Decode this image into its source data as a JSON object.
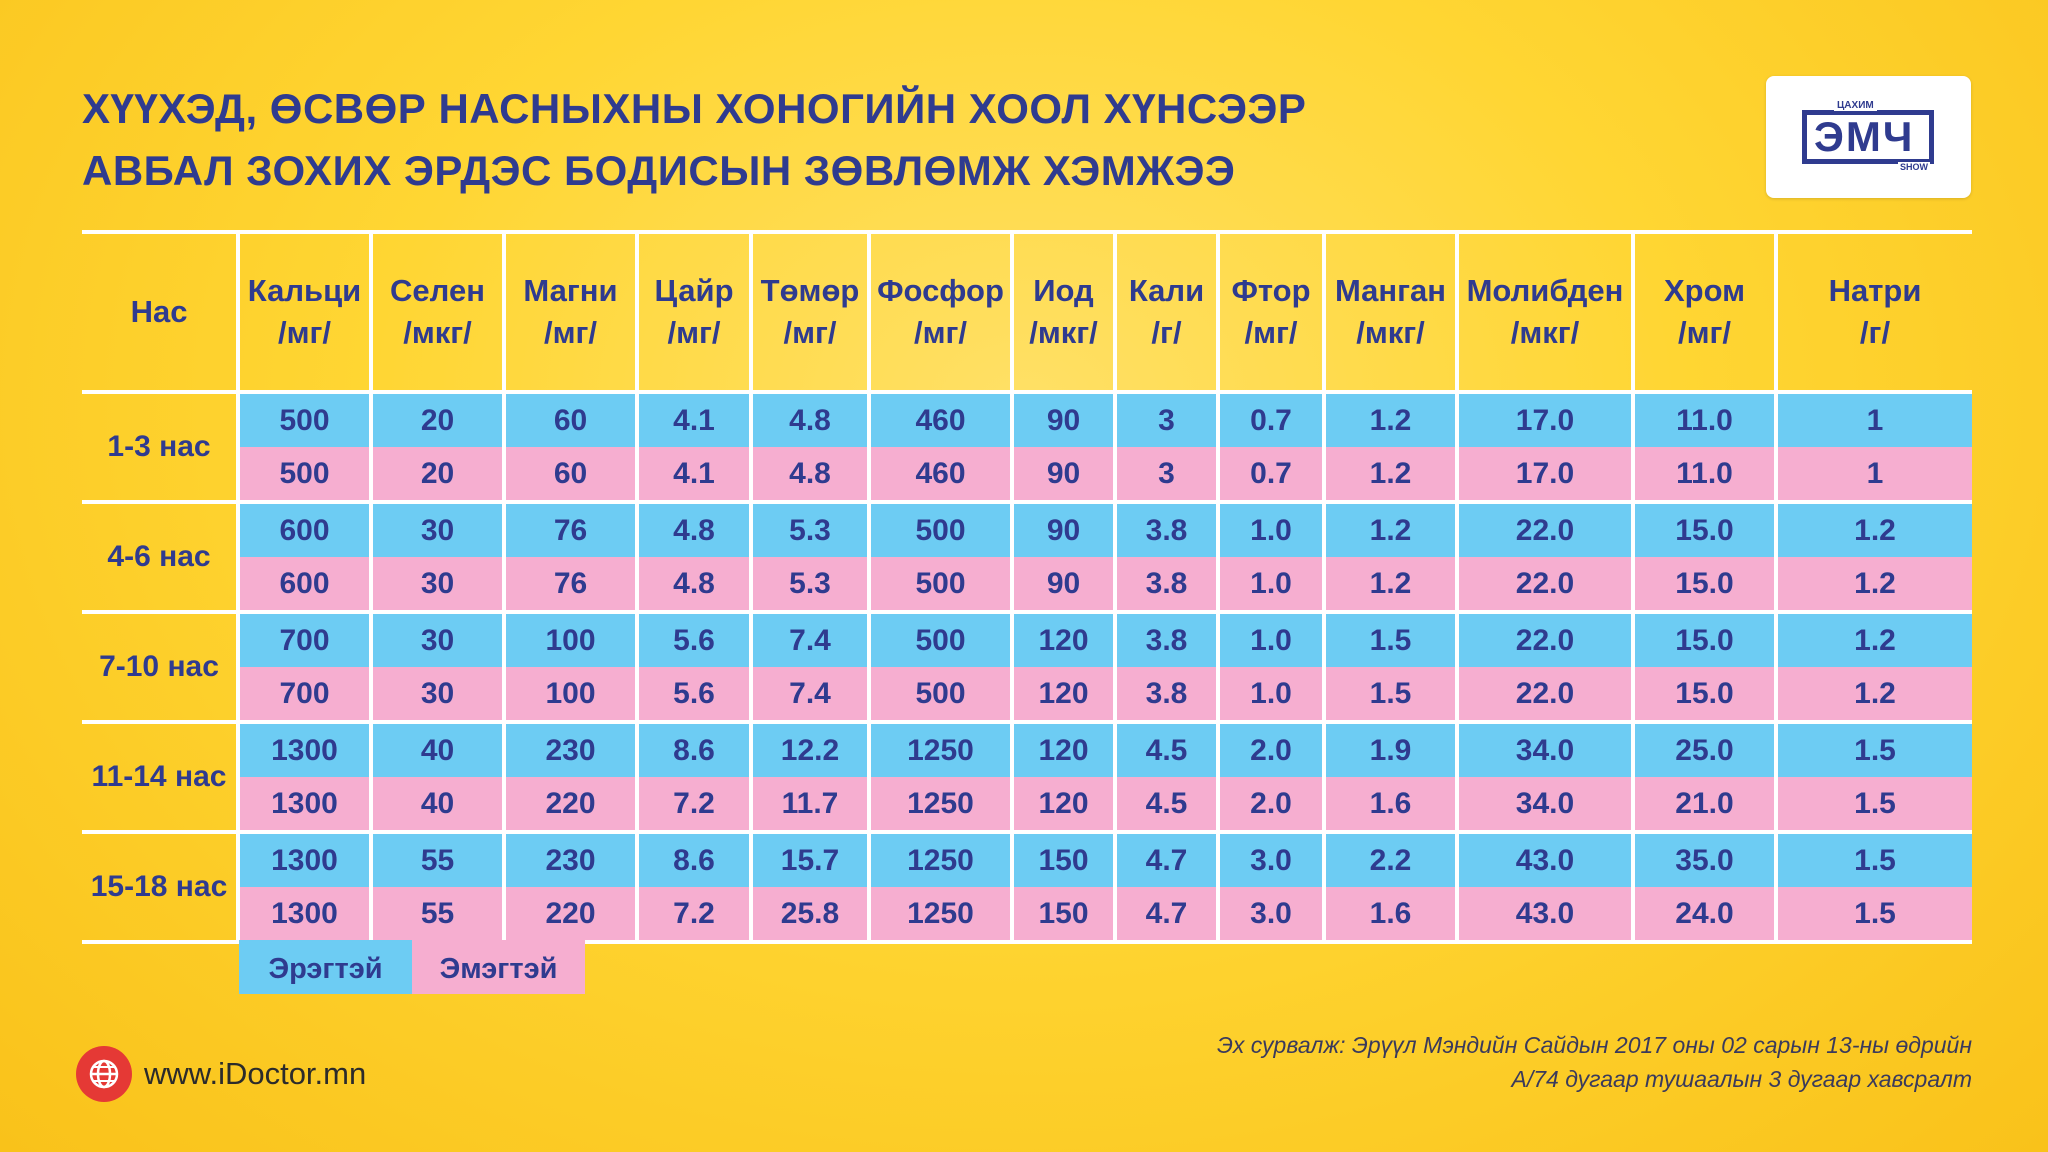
{
  "title": {
    "line1": "ХҮҮХЭД, ӨСВӨР НАСНЫХНЫ ХОНОГИЙН ХООЛ ХҮНСЭЭР",
    "line2": "АВБАЛ ЗОХИХ ЭРДЭС БОДИСЫН ЗӨВЛӨМЖ ХЭМЖЭЭ"
  },
  "logo": {
    "top": "ЦАХИМ",
    "main": "ЭМЧ",
    "bottom": "SHOW"
  },
  "table": {
    "age_header": "Нас",
    "columns": [
      {
        "name": "Кальци",
        "unit": "/мг/"
      },
      {
        "name": "Селен",
        "unit": "/мкг/"
      },
      {
        "name": "Магни",
        "unit": "/мг/"
      },
      {
        "name": "Цайр",
        "unit": "/мг/"
      },
      {
        "name": "Төмөр",
        "unit": "/мг/"
      },
      {
        "name": "Фосфор",
        "unit": "/мг/"
      },
      {
        "name": "Иод",
        "unit": "/мкг/"
      },
      {
        "name": "Кали",
        "unit": "/г/"
      },
      {
        "name": "Фтор",
        "unit": "/мг/"
      },
      {
        "name": "Манган",
        "unit": "/мкг/"
      },
      {
        "name": "Молибден",
        "unit": "/мкг/"
      },
      {
        "name": "Хром",
        "unit": "/мг/"
      },
      {
        "name": "Натри",
        "unit": "/г/"
      }
    ],
    "groups": [
      {
        "age": "1-3 нас",
        "male": [
          "500",
          "20",
          "60",
          "4.1",
          "4.8",
          "460",
          "90",
          "3",
          "0.7",
          "1.2",
          "17.0",
          "11.0",
          "1"
        ],
        "female": [
          "500",
          "20",
          "60",
          "4.1",
          "4.8",
          "460",
          "90",
          "3",
          "0.7",
          "1.2",
          "17.0",
          "11.0",
          "1"
        ]
      },
      {
        "age": "4-6 нас",
        "male": [
          "600",
          "30",
          "76",
          "4.8",
          "5.3",
          "500",
          "90",
          "3.8",
          "1.0",
          "1.2",
          "22.0",
          "15.0",
          "1.2"
        ],
        "female": [
          "600",
          "30",
          "76",
          "4.8",
          "5.3",
          "500",
          "90",
          "3.8",
          "1.0",
          "1.2",
          "22.0",
          "15.0",
          "1.2"
        ]
      },
      {
        "age": "7-10 нас",
        "male": [
          "700",
          "30",
          "100",
          "5.6",
          "7.4",
          "500",
          "120",
          "3.8",
          "1.0",
          "1.5",
          "22.0",
          "15.0",
          "1.2"
        ],
        "female": [
          "700",
          "30",
          "100",
          "5.6",
          "7.4",
          "500",
          "120",
          "3.8",
          "1.0",
          "1.5",
          "22.0",
          "15.0",
          "1.2"
        ]
      },
      {
        "age": "11-14 нас",
        "male": [
          "1300",
          "40",
          "230",
          "8.6",
          "12.2",
          "1250",
          "120",
          "4.5",
          "2.0",
          "1.9",
          "34.0",
          "25.0",
          "1.5"
        ],
        "female": [
          "1300",
          "40",
          "220",
          "7.2",
          "11.7",
          "1250",
          "120",
          "4.5",
          "2.0",
          "1.6",
          "34.0",
          "21.0",
          "1.5"
        ]
      },
      {
        "age": "15-18 нас",
        "male": [
          "1300",
          "55",
          "230",
          "8.6",
          "15.7",
          "1250",
          "150",
          "4.7",
          "3.0",
          "2.2",
          "43.0",
          "35.0",
          "1.5"
        ],
        "female": [
          "1300",
          "55",
          "220",
          "7.2",
          "25.8",
          "1250",
          "150",
          "4.7",
          "3.0",
          "1.6",
          "43.0",
          "24.0",
          "1.5"
        ]
      }
    ]
  },
  "legend": {
    "male": "Эрэгтэй",
    "female": "Эмэгтэй",
    "male_color": "#6dccf3",
    "female_color": "#f6aed0"
  },
  "website": {
    "icon": "globe-icon",
    "url": "www.iDoctor.mn"
  },
  "source": {
    "line1": "Эх сурвалж: Эрүүл Мэндийн Сайдын 2017 оны 02 сарын 13-ны өдрийн",
    "line2": "А/74 дугаар тушаалын 3 дугаар хавсралт"
  }
}
